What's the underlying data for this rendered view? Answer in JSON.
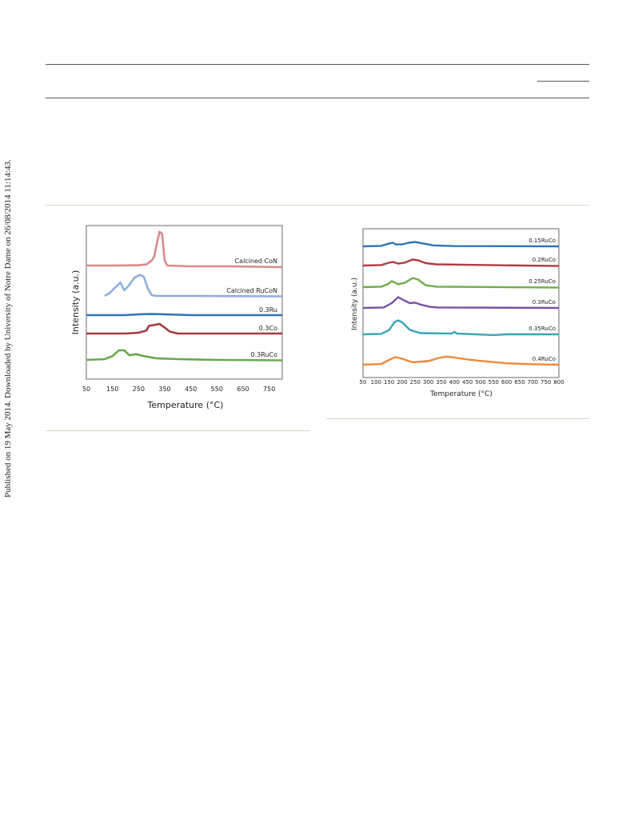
{
  "side_note": "Published on 19 May 2014. Downloaded by University of Notre Dame on 26/08/2014 11:14:43.",
  "chart_data": [
    {
      "type": "line",
      "title": "",
      "xlabel": "Temperature (°C)",
      "ylabel": "Intensity (a.u.)",
      "xlim": [
        50,
        800
      ],
      "x_ticks": [
        50,
        150,
        250,
        350,
        450,
        550,
        650,
        750
      ],
      "grid": false,
      "legend": "inline labels at right end of each trace",
      "series": [
        {
          "name": "Calcined CoN",
          "color": "#d9898c",
          "points": [
            [
              50,
              0.02
            ],
            [
              150,
              0.02
            ],
            [
              250,
              0.03
            ],
            [
              280,
              0.05
            ],
            [
              300,
              0.15
            ],
            [
              310,
              0.25
            ],
            [
              320,
              0.6
            ],
            [
              330,
              0.9
            ],
            [
              340,
              0.85
            ],
            [
              345,
              0.5
            ],
            [
              350,
              0.15
            ],
            [
              360,
              0.02
            ],
            [
              450,
              0.0
            ],
            [
              600,
              0.0
            ],
            [
              800,
              -0.02
            ]
          ]
        },
        {
          "name": "Calcined RuCoN",
          "color": "#8eaedb",
          "points": [
            [
              120,
              0.0
            ],
            [
              140,
              0.08
            ],
            [
              165,
              0.25
            ],
            [
              180,
              0.35
            ],
            [
              195,
              0.15
            ],
            [
              210,
              0.25
            ],
            [
              235,
              0.48
            ],
            [
              255,
              0.55
            ],
            [
              270,
              0.5
            ],
            [
              285,
              0.2
            ],
            [
              300,
              0.02
            ],
            [
              320,
              0.0
            ],
            [
              450,
              0.0
            ],
            [
              800,
              -0.01
            ]
          ]
        },
        {
          "name": "0.3Ru",
          "color": "#2e75b6",
          "points": [
            [
              50,
              0.0
            ],
            [
              200,
              0.0
            ],
            [
              250,
              0.02
            ],
            [
              300,
              0.03
            ],
            [
              350,
              0.02
            ],
            [
              450,
              0.0
            ],
            [
              800,
              0.0
            ]
          ]
        },
        {
          "name": "0.3Co",
          "color": "#a63a3f",
          "points": [
            [
              50,
              0.0
            ],
            [
              200,
              0.0
            ],
            [
              250,
              0.02
            ],
            [
              280,
              0.08
            ],
            [
              290,
              0.2
            ],
            [
              310,
              0.22
            ],
            [
              330,
              0.25
            ],
            [
              345,
              0.18
            ],
            [
              370,
              0.05
            ],
            [
              400,
              0.0
            ],
            [
              800,
              0.0
            ]
          ]
        },
        {
          "name": "0.3RuCo",
          "color": "#6aa84f",
          "points": [
            [
              50,
              0.0
            ],
            [
              120,
              0.02
            ],
            [
              150,
              0.1
            ],
            [
              175,
              0.25
            ],
            [
              195,
              0.25
            ],
            [
              215,
              0.12
            ],
            [
              240,
              0.15
            ],
            [
              270,
              0.1
            ],
            [
              320,
              0.04
            ],
            [
              400,
              0.02
            ],
            [
              550,
              0.0
            ],
            [
              800,
              -0.01
            ]
          ]
        }
      ]
    },
    {
      "type": "line",
      "title": "",
      "xlabel": "Temperature (°C)",
      "ylabel": "Intensity (a.u.)",
      "xlim": [
        50,
        800
      ],
      "x_ticks": [
        50,
        100,
        150,
        200,
        250,
        300,
        350,
        400,
        450,
        500,
        550,
        600,
        650,
        700,
        750,
        800
      ],
      "grid": false,
      "legend": "inline labels at right end of each trace",
      "series": [
        {
          "name": "0.15RuCo",
          "color": "#2e75b6",
          "points": [
            [
              50,
              0.0
            ],
            [
              120,
              0.02
            ],
            [
              150,
              0.12
            ],
            [
              165,
              0.15
            ],
            [
              175,
              0.08
            ],
            [
              200,
              0.08
            ],
            [
              225,
              0.15
            ],
            [
              250,
              0.18
            ],
            [
              280,
              0.12
            ],
            [
              320,
              0.04
            ],
            [
              400,
              0.01
            ],
            [
              800,
              0.0
            ]
          ]
        },
        {
          "name": "0.2RuCo",
          "color": "#b23a3f",
          "points": [
            [
              50,
              0.0
            ],
            [
              120,
              0.02
            ],
            [
              150,
              0.12
            ],
            [
              165,
              0.15
            ],
            [
              185,
              0.08
            ],
            [
              210,
              0.12
            ],
            [
              240,
              0.25
            ],
            [
              260,
              0.22
            ],
            [
              290,
              0.1
            ],
            [
              330,
              0.05
            ],
            [
              450,
              0.03
            ],
            [
              800,
              -0.02
            ]
          ]
        },
        {
          "name": "0.25RuCo",
          "color": "#70ad47",
          "points": [
            [
              50,
              0.0
            ],
            [
              120,
              0.02
            ],
            [
              145,
              0.12
            ],
            [
              160,
              0.25
            ],
            [
              185,
              0.12
            ],
            [
              210,
              0.18
            ],
            [
              240,
              0.38
            ],
            [
              260,
              0.32
            ],
            [
              290,
              0.08
            ],
            [
              330,
              0.02
            ],
            [
              800,
              -0.02
            ]
          ]
        },
        {
          "name": "0.3RuCo",
          "color": "#7a52a3",
          "points": [
            [
              50,
              0.0
            ],
            [
              130,
              0.02
            ],
            [
              160,
              0.2
            ],
            [
              185,
              0.45
            ],
            [
              210,
              0.3
            ],
            [
              230,
              0.2
            ],
            [
              250,
              0.22
            ],
            [
              270,
              0.14
            ],
            [
              310,
              0.04
            ],
            [
              340,
              0.02
            ],
            [
              800,
              0.0
            ]
          ]
        },
        {
          "name": "0.35RuCo",
          "color": "#3aa3b8",
          "points": [
            [
              50,
              0.0
            ],
            [
              120,
              0.02
            ],
            [
              150,
              0.18
            ],
            [
              170,
              0.5
            ],
            [
              185,
              0.58
            ],
            [
              200,
              0.5
            ],
            [
              230,
              0.18
            ],
            [
              270,
              0.05
            ],
            [
              390,
              0.03
            ],
            [
              400,
              0.1
            ],
            [
              410,
              0.03
            ],
            [
              550,
              -0.03
            ],
            [
              600,
              0.0
            ],
            [
              800,
              0.0
            ]
          ]
        },
        {
          "name": "0.4RuCo",
          "color": "#ed8a3a",
          "points": [
            [
              50,
              0.0
            ],
            [
              120,
              0.03
            ],
            [
              150,
              0.2
            ],
            [
              175,
              0.32
            ],
            [
              200,
              0.25
            ],
            [
              240,
              0.1
            ],
            [
              300,
              0.15
            ],
            [
              340,
              0.28
            ],
            [
              370,
              0.34
            ],
            [
              400,
              0.3
            ],
            [
              450,
              0.22
            ],
            [
              520,
              0.14
            ],
            [
              600,
              0.06
            ],
            [
              700,
              0.02
            ],
            [
              800,
              0.0
            ]
          ]
        }
      ]
    }
  ]
}
